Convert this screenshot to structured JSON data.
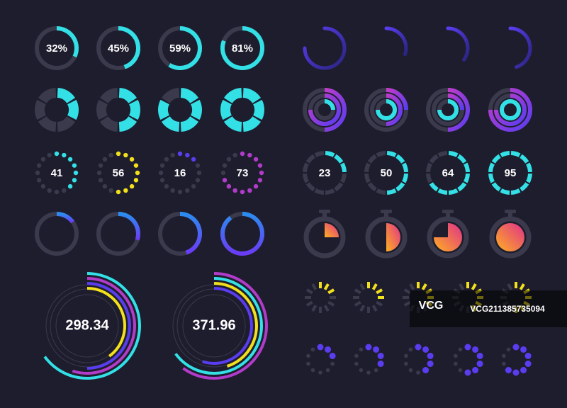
{
  "percent_rings": [
    {
      "value": 32,
      "label": "32%"
    },
    {
      "value": 45,
      "label": "45%"
    },
    {
      "value": 59,
      "label": "59%"
    },
    {
      "value": 81,
      "label": "81%"
    }
  ],
  "gradient_arcs": [
    75,
    30,
    35,
    45
  ],
  "segmented_donuts": {
    "segments": 6,
    "filled": [
      2,
      3,
      5,
      6
    ]
  },
  "nested_quadrants": [
    [
      50,
      75,
      25
    ],
    [
      25,
      50,
      75
    ],
    [
      50,
      25,
      75
    ],
    [
      75,
      75,
      100
    ]
  ],
  "dot_rings": {
    "dots": 16,
    "rings": [
      {
        "value": 41,
        "color": "#33e0e6"
      },
      {
        "value": 56,
        "color": "#f2e01c"
      },
      {
        "value": 16,
        "color": "#5a3df0"
      },
      {
        "value": 73,
        "color": "#b13cc9"
      }
    ]
  },
  "segment_rings": {
    "segments": 12,
    "values": [
      23,
      50,
      64,
      95
    ]
  },
  "thin_rings": [
    15,
    30,
    45,
    90
  ],
  "stopwatches": [
    25,
    50,
    75,
    100
  ],
  "big_gauges": [
    {
      "value": 298.34,
      "arcs": [
        {
          "value": 65,
          "color": "#33e0e6"
        },
        {
          "value": 55,
          "color": "#b13cc9"
        },
        {
          "value": 50,
          "color": "#5a3df0"
        },
        {
          "value": 40,
          "color": "#f2e01c"
        }
      ]
    },
    {
      "value": 371.96,
      "arcs": [
        {
          "value": 60,
          "color": "#b13cc9"
        },
        {
          "value": 65,
          "color": "#33e0e6"
        },
        {
          "value": 45,
          "color": "#f2e01c"
        },
        {
          "value": 55,
          "color": "#5a3df0"
        }
      ]
    }
  ],
  "watermark": {
    "logo": "VCG",
    "id": "VCG211385735094"
  }
}
